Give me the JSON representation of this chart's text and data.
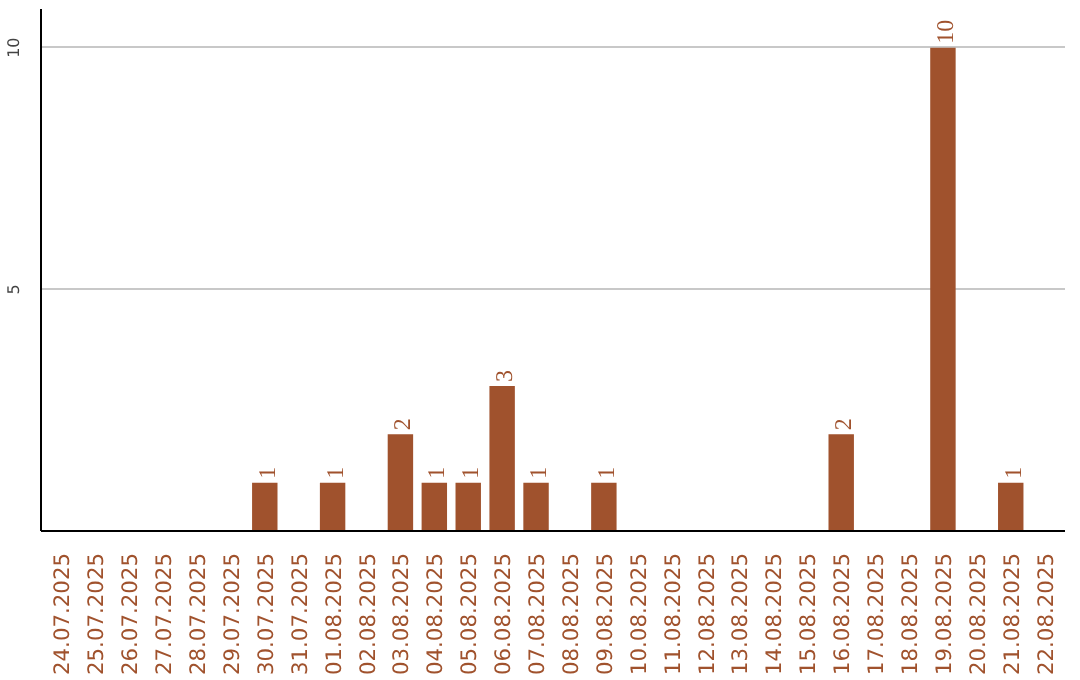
{
  "chart_data": {
    "type": "bar",
    "categories": [
      "24.07.2025",
      "25.07.2025",
      "26.07.2025",
      "27.07.2025",
      "28.07.2025",
      "29.07.2025",
      "30.07.2025",
      "31.07.2025",
      "01.08.2025",
      "02.08.2025",
      "03.08.2025",
      "04.08.2025",
      "05.08.2025",
      "06.08.2025",
      "07.08.2025",
      "08.08.2025",
      "09.08.2025",
      "10.08.2025",
      "11.08.2025",
      "12.08.2025",
      "13.08.2025",
      "14.08.2025",
      "15.08.2025",
      "16.08.2025",
      "17.08.2025",
      "18.08.2025",
      "19.08.2025",
      "20.08.2025",
      "21.08.2025",
      "22.08.2025"
    ],
    "values": [
      0,
      0,
      0,
      0,
      0,
      0,
      1,
      0,
      1,
      0,
      2,
      1,
      1,
      3,
      1,
      0,
      1,
      0,
      0,
      0,
      0,
      0,
      0,
      2,
      0,
      0,
      10,
      0,
      1,
      0
    ],
    "value_labels": [
      null,
      null,
      null,
      null,
      null,
      null,
      "1",
      null,
      "1",
      null,
      "2",
      "1",
      "1",
      "3",
      "1",
      null,
      "1",
      null,
      null,
      null,
      null,
      null,
      null,
      "2",
      null,
      null,
      "10",
      null,
      "1",
      null
    ],
    "color": "#a0522d",
    "ylim": [
      0,
      10.8
    ],
    "yticks": [
      5,
      10
    ],
    "grid": "y"
  }
}
